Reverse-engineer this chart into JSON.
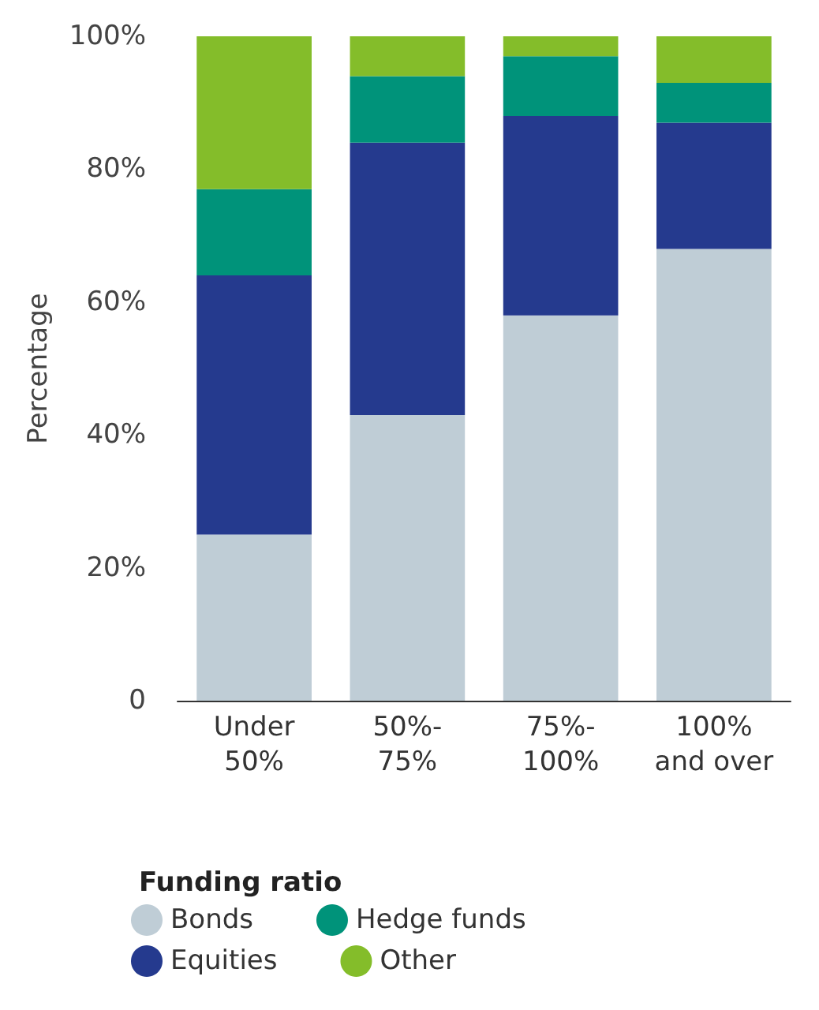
{
  "chart_data": {
    "type": "bar",
    "stacked": true,
    "ylabel": "Percentage",
    "legend_title": "Funding ratio",
    "legend": "bottom",
    "grid": false,
    "categories": [
      "Under 50%",
      "50%-75%",
      "75%-100%",
      "100% and over"
    ],
    "ylim": [
      0,
      100
    ],
    "yticks": [
      0,
      {
        "value": 20,
        "label": "20%"
      },
      {
        "value": 40,
        "label": "40%"
      },
      {
        "value": 60,
        "label": "60%"
      },
      {
        "value": 80,
        "label": "80%"
      },
      {
        "value": 100,
        "label": "100%"
      }
    ],
    "series": [
      {
        "name": "Bonds",
        "color": "#bfcdd6",
        "values": [
          25,
          43,
          58,
          68
        ]
      },
      {
        "name": "Equities",
        "color": "#253a8e",
        "values": [
          39,
          41,
          30,
          19
        ]
      },
      {
        "name": "Hedge funds",
        "color": "#00937a",
        "values": [
          13,
          10,
          9,
          6
        ]
      },
      {
        "name": "Other",
        "color": "#84bd2a",
        "values": [
          23,
          6,
          3,
          7
        ]
      }
    ]
  }
}
